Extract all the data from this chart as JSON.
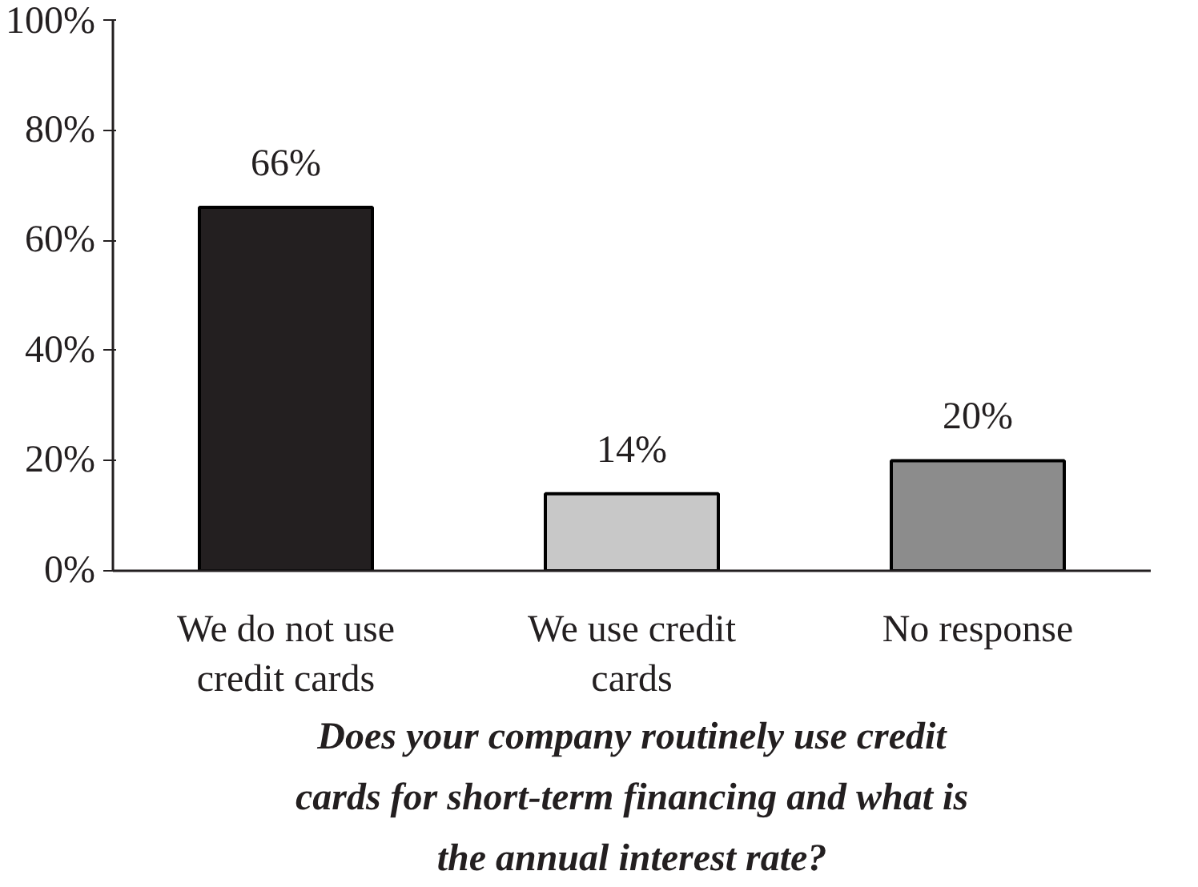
{
  "chart_data": {
    "type": "bar",
    "title": "Does your company routinely use credit cards for short-term financing and what is the annual interest rate?",
    "categories": [
      "We do not use credit cards",
      "We use credit cards",
      "No response"
    ],
    "values": [
      66,
      14,
      20
    ],
    "colors": [
      "#231f20",
      "#c8c8c8",
      "#8c8c8c"
    ],
    "value_labels": [
      "66%",
      "14%",
      "20%"
    ],
    "ylim": [
      0,
      100
    ],
    "yticks": [
      {
        "value": 0,
        "label": "0%"
      },
      {
        "value": 20,
        "label": "20%"
      },
      {
        "value": 40,
        "label": "40%"
      },
      {
        "value": 60,
        "label": "60%"
      },
      {
        "value": 80,
        "label": "80%"
      },
      {
        "value": 100,
        "label": "100%"
      }
    ],
    "grid": false
  }
}
